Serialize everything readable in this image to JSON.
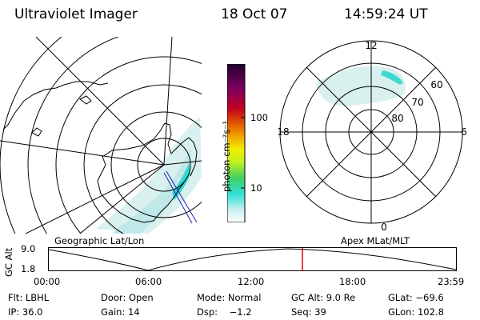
{
  "header": {
    "instrument": "Ultraviolet Imager",
    "date": "18 Oct 07",
    "time": "14:59:24 UT"
  },
  "colorbar": {
    "unit_label": "photon cm⁻²s⁻¹",
    "ticks": [
      "100",
      "10"
    ],
    "colors": [
      "#ffffff",
      "#c8f0f0",
      "#30e0d8",
      "#40d060",
      "#c0f020",
      "#f0f000",
      "#f0a000",
      "#e05000",
      "#c00020",
      "#800060",
      "#200030"
    ]
  },
  "maps": {
    "left_caption": "Geographic Lat/Lon",
    "right_caption": "Apex MLat/MLT",
    "mlt_labels": {
      "top": "12",
      "bottom": "0",
      "left": "18",
      "right": "6"
    },
    "mlat_labels": [
      "60",
      "70",
      "80"
    ]
  },
  "timeline": {
    "y_label": "GC Alt",
    "y_ticks": [
      "9.0",
      "1.8"
    ],
    "x_ticks": [
      "00:00",
      "06:00",
      "12:00",
      "18:00",
      "23:59"
    ],
    "marker_color": "#e00000"
  },
  "status": {
    "row1": {
      "flt": "Flt: LBHL",
      "door": "Door: Open",
      "mode": "Mode: Normal",
      "gcalt": "GC Alt: 9.0 Re",
      "glat": "GLat: −69.6"
    },
    "row2": {
      "ip": "IP: 36.0",
      "gain": "Gain: 14",
      "dsp": "Dsp:    −1.2",
      "seq": "Seq: 39",
      "glon": "GLon: 102.8"
    }
  }
}
